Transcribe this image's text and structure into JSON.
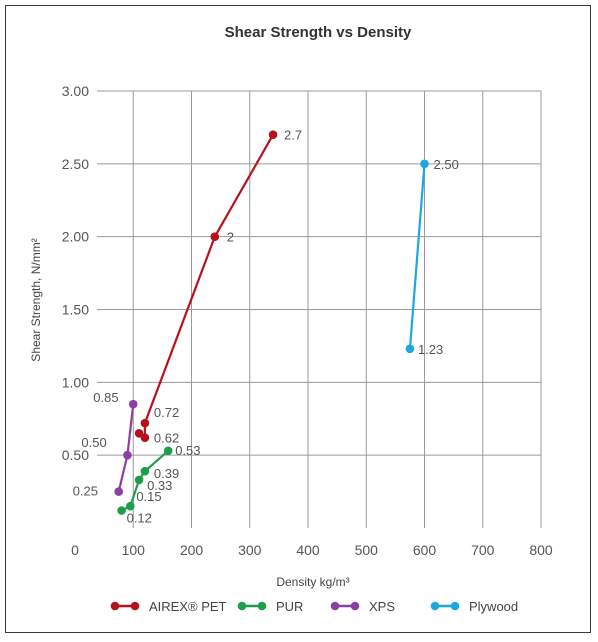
{
  "chart_data": {
    "type": "line",
    "title": "Shear Strength vs Density",
    "xlabel": "Density kg/m³",
    "ylabel": "Shear Strength, N/mm²",
    "xlim": [
      0,
      800
    ],
    "ylim": [
      0,
      3.0
    ],
    "x_ticks": [
      0,
      100,
      200,
      300,
      400,
      500,
      600,
      700,
      800
    ],
    "x_tick_labels": [
      "0",
      "100",
      "200",
      "300",
      "400",
      "500",
      "600",
      "700",
      "800"
    ],
    "y_ticks": [
      0.5,
      1.0,
      1.5,
      2.0,
      2.5,
      3.0
    ],
    "y_tick_labels": [
      "0.50",
      "1.00",
      "1.50",
      "2.00",
      "2.50",
      "3.00"
    ],
    "grid": true,
    "legend_position": "bottom",
    "series": [
      {
        "name": "AIREX® PET",
        "color": "#B5121B",
        "points": [
          {
            "x": 110,
            "y": 0.65,
            "label": ""
          },
          {
            "x": 120,
            "y": 0.62,
            "label": "0.62"
          },
          {
            "x": 120,
            "y": 0.72,
            "label": "0.72"
          },
          {
            "x": 240,
            "y": 2.0,
            "label": "2"
          },
          {
            "x": 340,
            "y": 2.7,
            "label": "2.7"
          }
        ]
      },
      {
        "name": "PUR",
        "color": "#1E9E4A",
        "points": [
          {
            "x": 80,
            "y": 0.12,
            "label": "0.12"
          },
          {
            "x": 95,
            "y": 0.15,
            "label": "0.15"
          },
          {
            "x": 110,
            "y": 0.33,
            "label": "0.33"
          },
          {
            "x": 120,
            "y": 0.39,
            "label": "0.39"
          },
          {
            "x": 160,
            "y": 0.53,
            "label": "0.53"
          }
        ]
      },
      {
        "name": "XPS",
        "color": "#8B3FA3",
        "points": [
          {
            "x": 75,
            "y": 0.25,
            "label": "0.25"
          },
          {
            "x": 90,
            "y": 0.5,
            "label": "0.50"
          },
          {
            "x": 100,
            "y": 0.85,
            "label": "0.85"
          }
        ]
      },
      {
        "name": "Plywood",
        "color": "#1BA8E0",
        "points": [
          {
            "x": 575,
            "y": 1.23,
            "label": "1.23"
          },
          {
            "x": 600,
            "y": 2.5,
            "label": "2.50"
          }
        ]
      }
    ]
  }
}
